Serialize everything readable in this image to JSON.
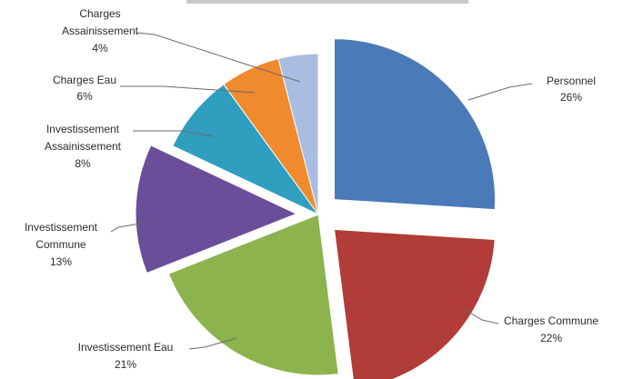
{
  "chart_data": {
    "type": "pie",
    "slices": [
      {
        "name": "Personnel",
        "value": 26,
        "pct_label": "26%",
        "color": "#4a7ab7",
        "exploded": true
      },
      {
        "name": "Charges Commune",
        "value": 22,
        "pct_label": "22%",
        "color": "#b13c38",
        "exploded": true
      },
      {
        "name": "Investissement Eau",
        "value": 21,
        "pct_label": "21%",
        "color": "#8cb34e",
        "exploded": false
      },
      {
        "name": "Investissement Commune",
        "value": 13,
        "pct_label": "13%",
        "color": "#6b4e9a",
        "exploded": true
      },
      {
        "name": "Investissement Assainissement",
        "value": 8,
        "pct_label": "8%",
        "color": "#2f9ebf",
        "exploded": false
      },
      {
        "name": "Charges Eau",
        "value": 6,
        "pct_label": "6%",
        "color": "#ef8a2e",
        "exploded": false
      },
      {
        "name": "Charges Assainissement",
        "value": 4,
        "pct_label": "4%",
        "color": "#a9bde3",
        "exploded": false
      }
    ],
    "legend": "none (callout labels)",
    "data_labels": "category name and percentage"
  }
}
